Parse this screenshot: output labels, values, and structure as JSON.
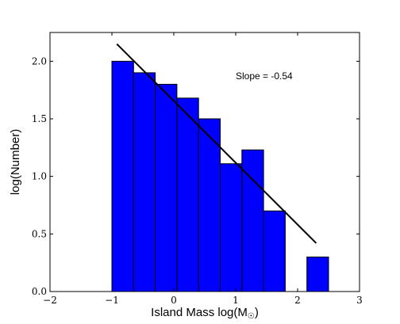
{
  "chart_data": {
    "type": "bar",
    "bars": [
      {
        "x0": -1.0,
        "x1": -0.65,
        "value": 2.0
      },
      {
        "x0": -0.65,
        "x1": -0.3,
        "value": 1.9
      },
      {
        "x0": -0.3,
        "x1": 0.05,
        "value": 1.8
      },
      {
        "x0": 0.05,
        "x1": 0.4,
        "value": 1.68
      },
      {
        "x0": 0.4,
        "x1": 0.75,
        "value": 1.5
      },
      {
        "x0": 0.75,
        "x1": 1.1,
        "value": 1.11
      },
      {
        "x0": 1.1,
        "x1": 1.45,
        "value": 1.23
      },
      {
        "x0": 1.45,
        "x1": 1.8,
        "value": 0.7
      },
      {
        "x0": 2.15,
        "x1": 2.5,
        "value": 0.3
      }
    ],
    "fit_line": {
      "x": [
        -0.92,
        2.3
      ],
      "y": [
        2.15,
        0.42
      ]
    },
    "xlabel": "Island Mass log(M",
    "xlabel_sub": "☉",
    "xlabel_close": ")",
    "ylabel": "log(Number)",
    "xlim": [
      -2,
      3
    ],
    "ylim": [
      0,
      2.25
    ],
    "xticks": [
      -2,
      -1,
      0,
      1,
      2,
      3
    ],
    "xtick_labels": [
      "−2",
      "−1",
      "0",
      "1",
      "2",
      "3"
    ],
    "yticks": [
      0.0,
      0.5,
      1.0,
      1.5,
      2.0
    ],
    "ytick_labels": [
      "0.0",
      "0.5",
      "1.0",
      "1.5",
      "2.0"
    ],
    "annotation": "Slope = -0.54",
    "annotation_pos": {
      "x": 1.0,
      "y": 1.87
    },
    "bar_color": "#0000ff",
    "line_color": "#000000",
    "grid": false
  }
}
